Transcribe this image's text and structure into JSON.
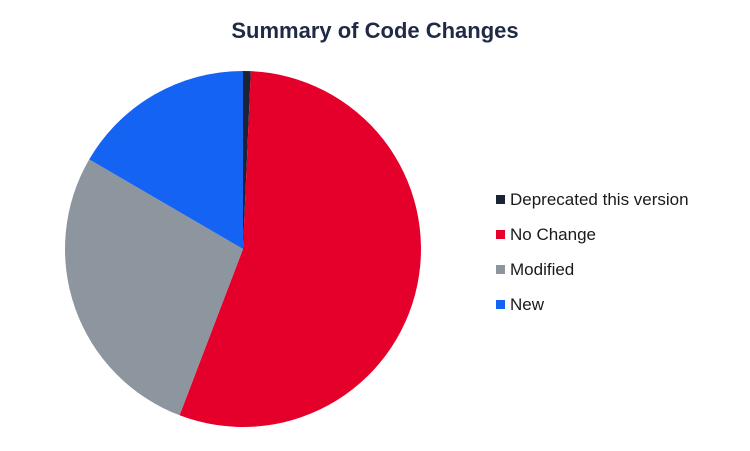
{
  "chart_data": {
    "type": "pie",
    "title": "Summary of Code Changes",
    "slices": [
      {
        "label": "Deprecated this version",
        "value": 0.7,
        "color": "#1b2437"
      },
      {
        "label": "No Change",
        "value": 55.1,
        "color": "#e4002b"
      },
      {
        "label": "Modified",
        "value": 27.6,
        "color": "#8d959e"
      },
      {
        "label": "New",
        "value": 16.6,
        "color": "#1463f3"
      }
    ],
    "legend_position": "right"
  }
}
